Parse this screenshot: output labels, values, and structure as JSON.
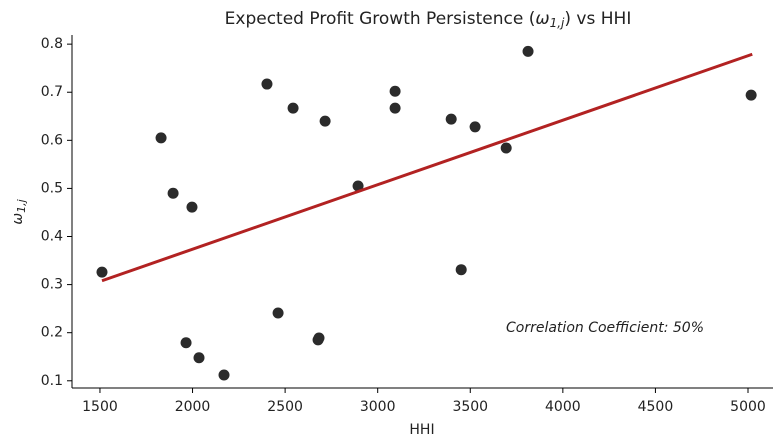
{
  "chart_data": {
    "type": "scatter",
    "title": [
      "Expected Profit Growth Persistence (",
      "ω",
      "1,j",
      ") vs HHI"
    ],
    "xlabel": "HHI",
    "ylabel": [
      "ω",
      "1,j"
    ],
    "annotation": "Correlation Coefficient: 50%",
    "series": [
      {
        "color": "#2b2b2b",
        "x": [
          1511,
          1830,
          1895,
          1997,
          1965,
          2035,
          2170,
          2402,
          2462,
          2543,
          2678,
          2683,
          2716,
          2894,
          3094,
          3094,
          3397,
          3451,
          3526,
          3694,
          3812,
          5017
        ],
        "values": [
          0.326,
          0.605,
          0.49,
          0.461,
          0.179,
          0.148,
          0.112,
          0.717,
          0.241,
          0.667,
          0.185,
          0.189,
          0.64,
          0.505,
          0.702,
          0.667,
          0.644,
          0.331,
          0.628,
          0.584,
          0.785,
          0.694
        ]
      }
    ],
    "fit": {
      "color": "#b22222",
      "x": [
        1511,
        5023
      ],
      "values": [
        0.308,
        0.779
      ]
    },
    "xlim": [
      1349,
      5135
    ],
    "ylim": [
      0.085,
      0.819
    ],
    "xticks": [
      1500,
      2000,
      2500,
      3000,
      3500,
      4000,
      4500,
      5000
    ],
    "yticks": [
      0.1,
      0.2,
      0.3,
      0.4,
      0.5,
      0.6,
      0.7,
      0.8
    ]
  }
}
